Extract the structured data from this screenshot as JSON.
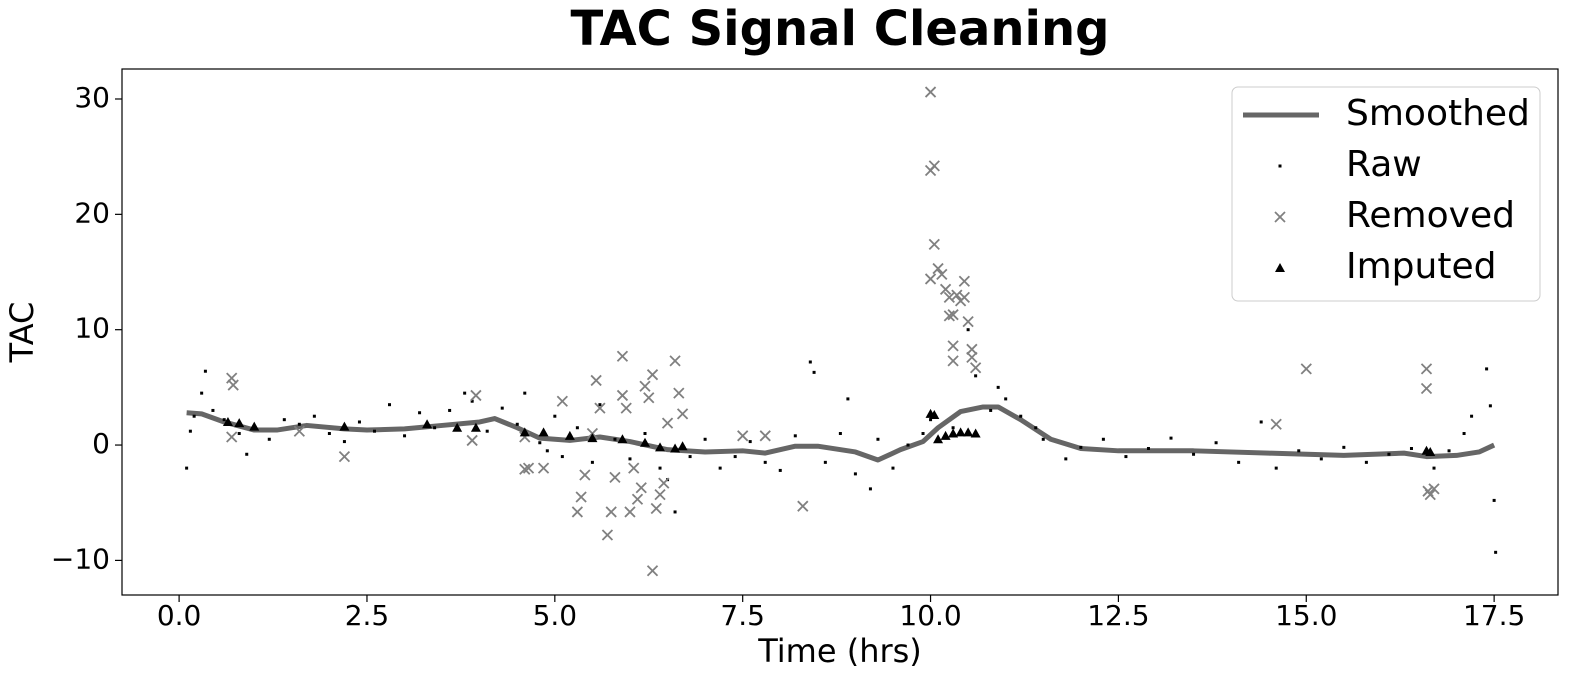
{
  "chart_data": {
    "type": "scatter",
    "title": "TAC Signal Cleaning",
    "x_label": "Time (hrs)",
    "y_label": "TAC",
    "xlim": [
      -0.76,
      18.35
    ],
    "ylim": [
      -13.0,
      32.6
    ],
    "xticks": [
      {
        "value": 0,
        "label": "0.0"
      },
      2.5,
      {
        "value": 5,
        "label": "5.0"
      },
      7.5,
      {
        "value": 10,
        "label": "10.0"
      },
      12.5,
      {
        "value": 15,
        "label": "15.0"
      },
      17.5
    ],
    "yticks": [
      {
        "value": -10,
        "label": "−10"
      },
      0,
      10,
      20,
      30
    ],
    "grid": false,
    "legend": "upper right",
    "series": [
      {
        "name": "Smoothed",
        "marker": "line",
        "color": "#666666",
        "x": [
          0.1,
          0.3,
          0.6,
          1.0,
          1.3,
          1.7,
          2.2,
          2.5,
          3.0,
          3.5,
          4.0,
          4.2,
          4.5,
          4.8,
          5.2,
          5.6,
          6.0,
          6.5,
          7.0,
          7.5,
          7.8,
          8.2,
          8.5,
          9.0,
          9.3,
          9.6,
          9.9,
          10.1,
          10.4,
          10.7,
          10.9,
          11.2,
          11.6,
          12.0,
          12.5,
          13.5,
          14.5,
          15.5,
          16.3,
          16.6,
          17.0,
          17.3,
          17.5
        ],
        "values": [
          2.8,
          2.7,
          2.0,
          1.3,
          1.3,
          1.7,
          1.4,
          1.3,
          1.4,
          1.7,
          2.0,
          2.3,
          1.5,
          0.6,
          0.4,
          0.7,
          0.3,
          -0.4,
          -0.6,
          -0.5,
          -0.7,
          -0.1,
          -0.1,
          -0.6,
          -1.3,
          -0.4,
          0.3,
          1.5,
          2.9,
          3.3,
          3.3,
          2.2,
          0.5,
          -0.3,
          -0.5,
          -0.5,
          -0.7,
          -0.9,
          -0.7,
          -1.0,
          -0.9,
          -0.6,
          0.0
        ]
      },
      {
        "name": "Raw",
        "marker": "dot",
        "color": "#000000",
        "x": [
          0.1,
          0.15,
          0.2,
          0.3,
          0.35,
          0.45,
          0.6,
          0.8,
          0.9,
          1.0,
          1.2,
          1.4,
          1.6,
          1.8,
          2.0,
          2.2,
          2.4,
          2.6,
          2.8,
          3.0,
          3.2,
          3.4,
          3.6,
          3.8,
          3.9,
          4.1,
          4.3,
          4.5,
          4.6,
          4.8,
          4.9,
          5.0,
          5.1,
          5.3,
          5.5,
          5.6,
          5.8,
          6.0,
          6.2,
          6.4,
          6.5,
          6.6,
          6.8,
          7.0,
          7.2,
          7.4,
          7.6,
          7.8,
          8.0,
          8.2,
          8.4,
          8.45,
          8.6,
          8.8,
          8.9,
          9.0,
          9.2,
          9.3,
          9.5,
          9.7,
          9.9,
          10.0,
          10.3,
          10.5,
          10.6,
          10.8,
          10.9,
          11.0,
          11.2,
          11.4,
          11.5,
          11.8,
          12.0,
          12.3,
          12.6,
          12.9,
          13.2,
          13.5,
          13.8,
          14.1,
          14.4,
          14.6,
          14.9,
          15.2,
          15.5,
          15.8,
          16.1,
          16.4,
          16.7,
          16.9,
          17.1,
          17.2,
          17.4,
          17.45,
          17.5,
          17.52
        ],
        "values": [
          -2.0,
          1.2,
          2.5,
          4.5,
          6.4,
          3.0,
          2.2,
          1.0,
          -0.8,
          1.5,
          0.5,
          2.2,
          1.8,
          2.5,
          1.0,
          0.3,
          2.0,
          1.2,
          3.5,
          0.8,
          2.8,
          1.5,
          3.0,
          4.5,
          3.8,
          1.2,
          3.2,
          1.8,
          4.5,
          0.2,
          -0.5,
          2.5,
          -1.0,
          1.5,
          -1.5,
          3.5,
          0.5,
          -1.2,
          1.0,
          -2.0,
          -3.0,
          -5.8,
          -1.0,
          0.5,
          -2.0,
          -1.0,
          0.3,
          -1.5,
          -2.2,
          0.8,
          7.2,
          6.3,
          -1.5,
          1.0,
          4.0,
          -2.5,
          -3.8,
          0.5,
          -2.0,
          0.0,
          1.0,
          2.2,
          1.5,
          10.0,
          6.0,
          3.0,
          5.0,
          4.0,
          2.5,
          1.5,
          0.5,
          -1.2,
          -0.2,
          0.5,
          -1.0,
          -0.3,
          0.6,
          -0.8,
          0.2,
          -1.5,
          2.0,
          -2.0,
          -0.5,
          -1.2,
          -0.2,
          -1.5,
          -0.8,
          -0.3,
          -2.0,
          -0.5,
          1.0,
          2.5,
          6.6,
          3.4,
          -4.8,
          -9.3
        ]
      },
      {
        "name": "Removed",
        "marker": "x",
        "color": "#808080",
        "x": [
          0.7,
          0.72,
          0.7,
          1.6,
          2.2,
          3.95,
          3.9,
          4.6,
          4.6,
          4.65,
          4.85,
          5.1,
          5.3,
          5.35,
          5.4,
          5.5,
          5.55,
          5.6,
          5.7,
          5.75,
          5.8,
          5.9,
          5.9,
          5.95,
          6.0,
          6.05,
          6.1,
          6.15,
          6.2,
          6.25,
          6.3,
          6.35,
          6.4,
          6.45,
          6.3,
          6.5,
          6.6,
          6.65,
          6.7,
          7.5,
          7.8,
          8.3,
          10.0,
          10.0,
          10.05,
          10.05,
          10.0,
          10.1,
          10.15,
          10.2,
          10.25,
          10.25,
          10.3,
          10.3,
          10.3,
          10.35,
          10.4,
          10.45,
          10.45,
          10.5,
          10.55,
          10.55,
          10.6,
          14.6,
          15.0,
          16.6,
          16.6,
          16.62,
          16.65,
          16.7
        ],
        "values": [
          5.8,
          5.2,
          0.7,
          1.2,
          -1.0,
          4.3,
          0.4,
          0.7,
          -2.1,
          -2.0,
          -2.0,
          3.8,
          -5.8,
          -4.5,
          -2.6,
          1.0,
          5.6,
          3.2,
          -7.8,
          -5.8,
          -2.8,
          7.7,
          4.3,
          3.2,
          -5.8,
          -2.0,
          -4.7,
          -3.7,
          5.1,
          4.1,
          6.1,
          -5.5,
          -4.3,
          -3.3,
          -10.9,
          1.9,
          7.3,
          4.5,
          2.7,
          0.8,
          0.8,
          -5.3,
          30.6,
          23.8,
          24.2,
          17.4,
          14.4,
          15.3,
          14.8,
          13.5,
          12.8,
          11.2,
          11.3,
          8.6,
          7.3,
          13.0,
          12.5,
          14.2,
          12.8,
          10.7,
          8.3,
          7.6,
          6.7,
          1.8,
          6.6,
          6.6,
          4.9,
          -4.0,
          -4.3,
          -3.8
        ]
      },
      {
        "name": "Imputed",
        "marker": "triangle",
        "color": "#000000",
        "x": [
          0.65,
          0.8,
          1.0,
          2.2,
          3.3,
          3.7,
          3.95,
          4.6,
          4.85,
          5.2,
          5.5,
          5.9,
          6.2,
          6.4,
          6.6,
          6.7,
          10.0,
          10.05,
          10.1,
          10.2,
          10.3,
          10.4,
          10.5,
          10.6,
          16.6,
          16.65
        ],
        "values": [
          2.0,
          1.9,
          1.6,
          1.6,
          1.8,
          1.5,
          1.5,
          1.1,
          1.1,
          0.8,
          0.6,
          0.5,
          0.2,
          -0.2,
          -0.3,
          -0.1,
          2.7,
          2.6,
          0.5,
          0.8,
          1.0,
          1.1,
          1.1,
          1.0,
          -0.5,
          -0.6
        ]
      }
    ]
  }
}
